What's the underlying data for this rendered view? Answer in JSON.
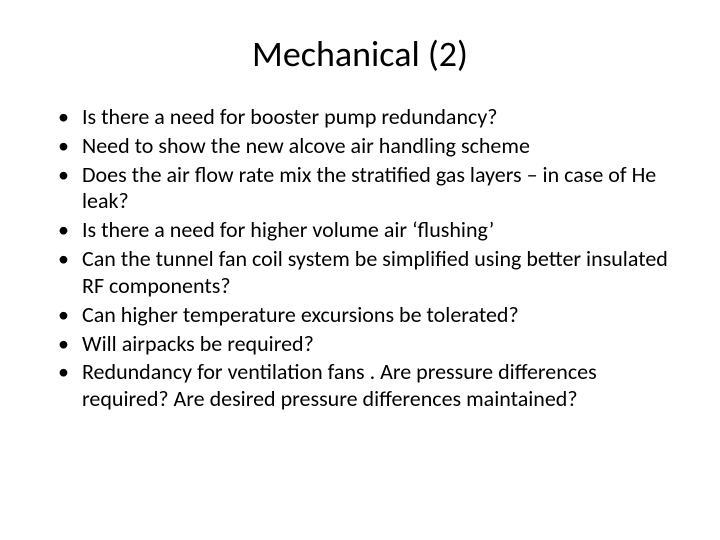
{
  "title": "Mechanical (2)",
  "title_fontsize": 36,
  "body_fontsize": 22,
  "text_color": "#000000",
  "background_color": "#ffffff",
  "bullets": [
    "Is there a need for booster pump redundancy?",
    "Need to show the new alcove air handling scheme",
    "Does the air flow rate mix the stratified gas layers – in case of He leak?",
    "Is there a need for higher volume air ‘flushing’",
    "Can the tunnel fan coil system be simplified using better insulated RF components?",
    "Can higher temperature excursions be tolerated?",
    "Will airpacks be required?",
    "Redundancy for ventilation fans . Are pressure differences required? Are desired pressure differences maintained?"
  ]
}
